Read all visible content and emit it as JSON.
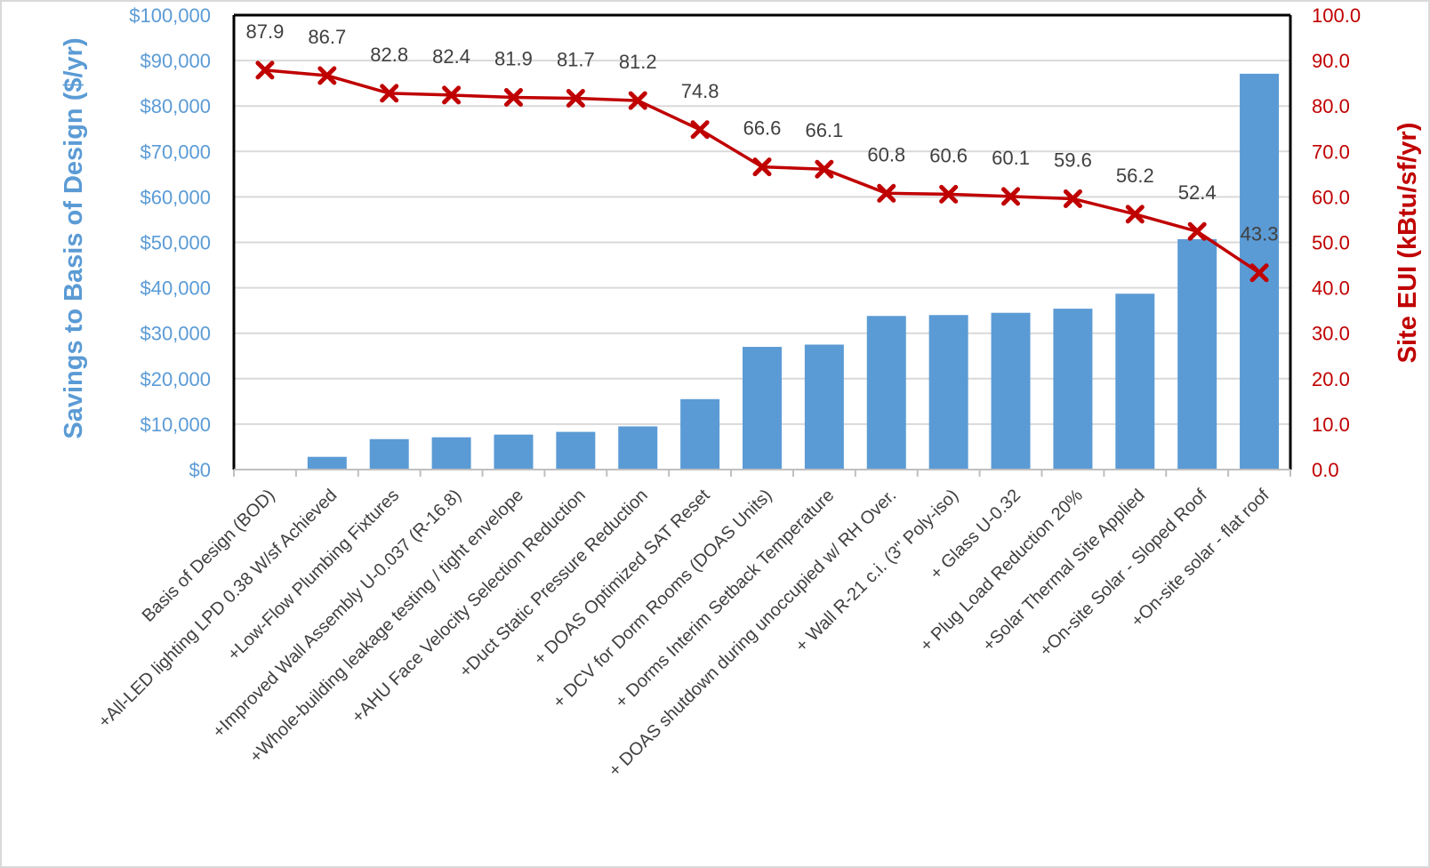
{
  "chart_data": {
    "type": "bar+line",
    "categories": [
      "Basis of Design (BOD)",
      "+All-LED lighting LPD 0.38 W/sf Achieved",
      "+Low-Flow Plumbing Fixtures",
      "+Improved Wall Assembly U-0.037 (R-16.8)",
      "+Whole-building leakage testing / tight envelope",
      "+AHU Face Velocity Selection Reduction",
      "+Duct Static Pressure Reduction",
      "+ DOAS Optimized SAT Reset",
      "+ DCV for Dorm Rooms (DOAS Units)",
      "+ Dorms Interim Setback Temperature",
      "+ DOAS shutdown during unoccupied w/ RH Over.",
      "+ Wall R-21 c.i. (3\" Poly-iso)",
      "+ Glass U-0.32",
      "+ Plug Load Reduction 20%",
      "+Solar Thermal Site Applied",
      "+On-site Solar - Sloped Roof",
      "+On-site solar - flat roof"
    ],
    "series": [
      {
        "type": "bar",
        "axis": "left",
        "color": "#5b9bd5",
        "values": [
          0,
          2800,
          6700,
          7100,
          7700,
          8300,
          9500,
          15500,
          27000,
          27500,
          33800,
          34000,
          34500,
          35400,
          38700,
          50700,
          87100
        ]
      },
      {
        "type": "line",
        "axis": "right",
        "color": "#c00000",
        "values": [
          87.9,
          86.7,
          82.8,
          82.4,
          81.9,
          81.7,
          81.2,
          74.8,
          66.6,
          66.1,
          60.8,
          60.6,
          60.1,
          59.6,
          56.2,
          52.4,
          43.3
        ],
        "data_labels": [
          "87.9",
          "86.7",
          "82.8",
          "82.4",
          "81.9",
          "81.7",
          "81.2",
          "74.8",
          "66.6",
          "66.1",
          "60.8",
          "60.6",
          "60.1",
          "59.6",
          "56.2",
          "52.4",
          "43.3"
        ]
      }
    ],
    "ylabel_left": "Savings to Basis of Design ($/yr)",
    "ylabel_right": "Site EUI (kBtu/sf/yr)",
    "ylim_left": [
      0,
      100000
    ],
    "ylim_right": [
      0,
      100
    ],
    "yticks_left": [
      "$0",
      "$10,000",
      "$20,000",
      "$30,000",
      "$40,000",
      "$50,000",
      "$60,000",
      "$70,000",
      "$80,000",
      "$90,000",
      "$100,000"
    ],
    "yticks_right": [
      "0.0",
      "10.0",
      "20.0",
      "30.0",
      "40.0",
      "50.0",
      "60.0",
      "70.0",
      "80.0",
      "90.0",
      "100.0"
    ],
    "grid": true,
    "legend": "none"
  }
}
